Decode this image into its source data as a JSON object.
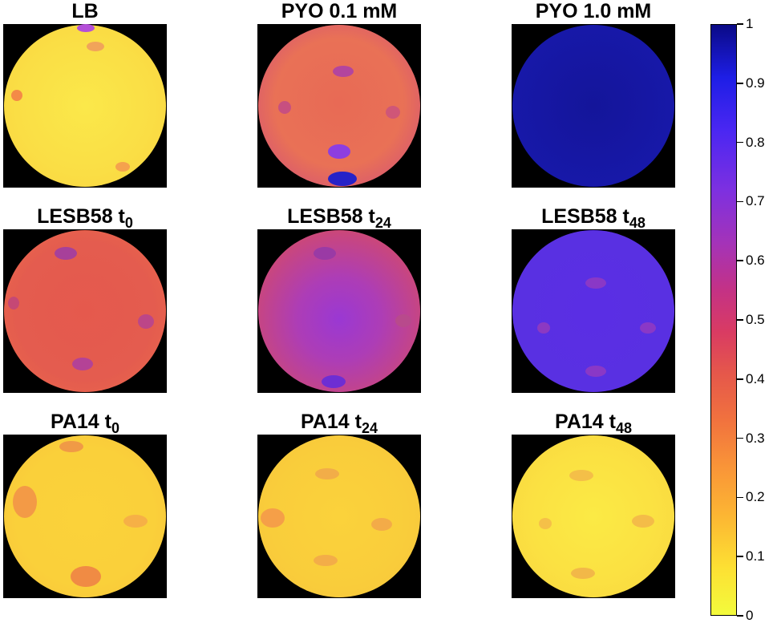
{
  "panels": [
    {
      "title": "LB",
      "sub": ""
    },
    {
      "title": "PYO 0.1 mM",
      "sub": ""
    },
    {
      "title": "PYO 1.0 mM",
      "sub": ""
    },
    {
      "title": "LESB58 t",
      "sub": "0"
    },
    {
      "title": "LESB58 t",
      "sub": "24"
    },
    {
      "title": "LESB58 t",
      "sub": "48"
    },
    {
      "title": "PA14 t",
      "sub": "0"
    },
    {
      "title": "PA14 t",
      "sub": "24"
    },
    {
      "title": "PA14 t",
      "sub": "48"
    }
  ],
  "colorbar": {
    "ticks": [
      "0",
      "0.1",
      "0.2",
      "0.3",
      "0.4",
      "0.5",
      "0.6",
      "0.7",
      "0.8",
      "0.9",
      "1"
    ]
  }
}
